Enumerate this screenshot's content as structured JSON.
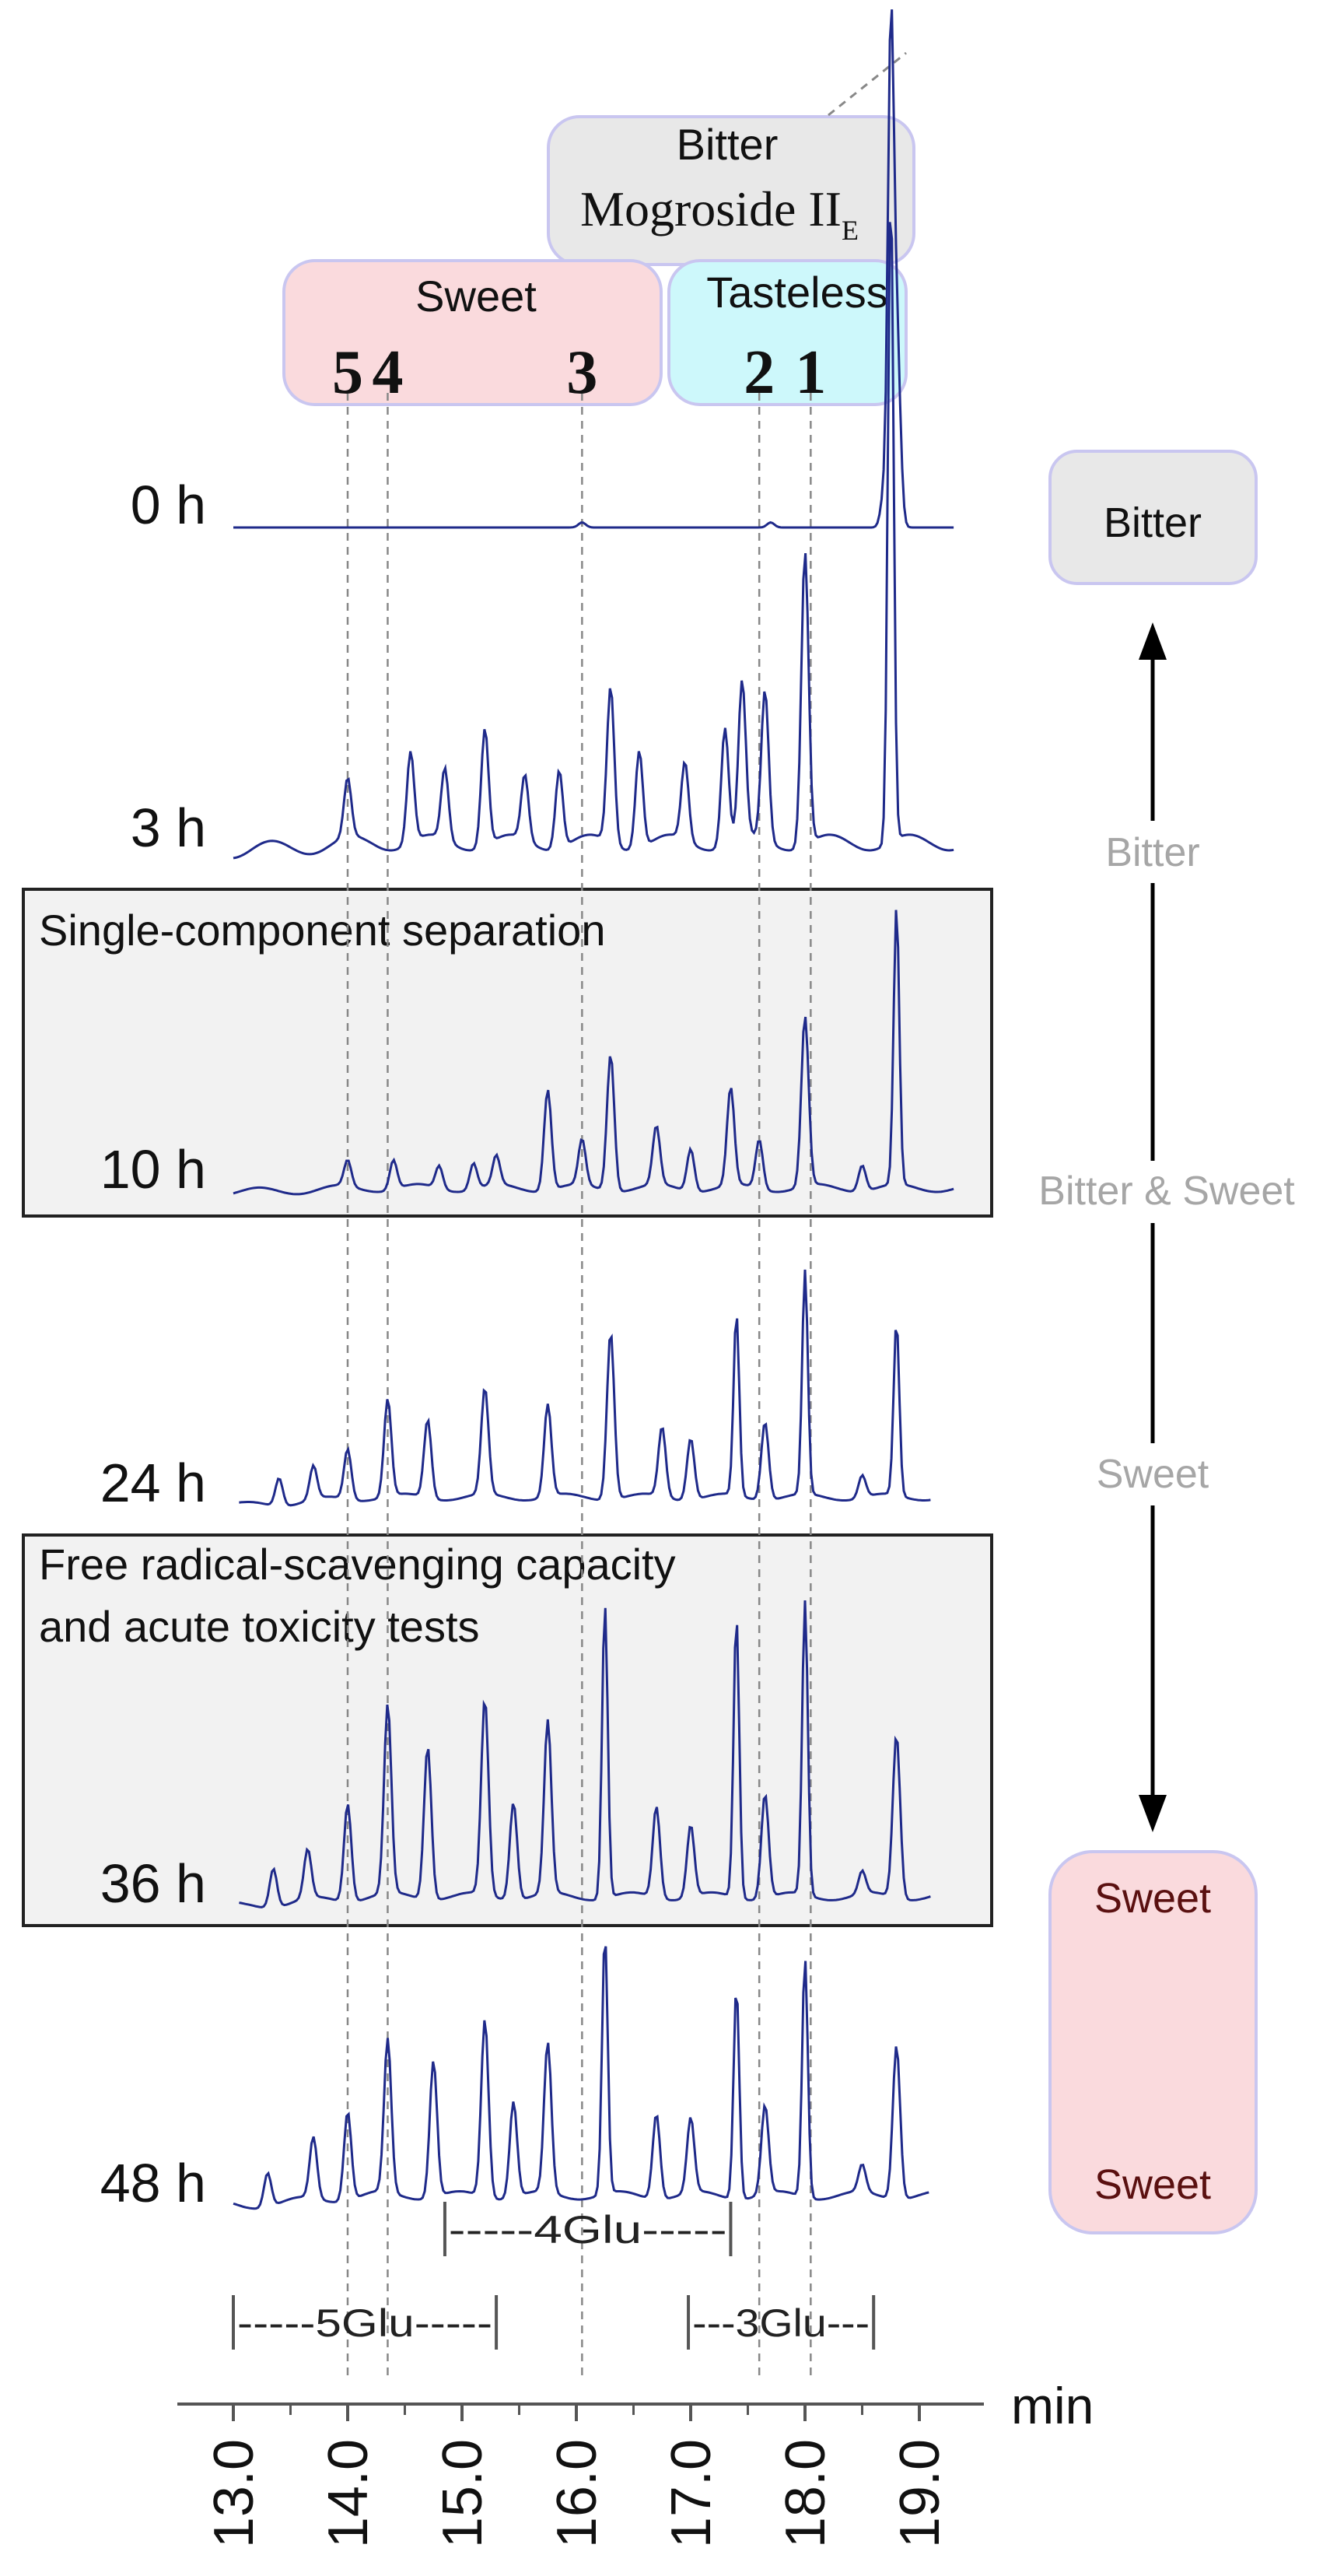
{
  "chart_data": {
    "type": "line",
    "xlabel": "min",
    "xlim": [
      13.0,
      19.3
    ],
    "ticks": [
      "13.0",
      "14.0",
      "15.0",
      "16.0",
      "17.0",
      "18.0",
      "19.0"
    ],
    "tick_values": [
      13.0,
      14.0,
      15.0,
      16.0,
      17.0,
      18.0,
      19.0
    ],
    "series": [
      {
        "name": "0 h",
        "peaks": [
          {
            "x": 18.7,
            "h": 0.08
          },
          {
            "x": 18.75,
            "h": 0.9
          },
          {
            "x": 18.8,
            "h": 0.4
          },
          {
            "x": 16.05,
            "h": 0.01
          },
          {
            "x": 17.7,
            "h": 0.01
          }
        ]
      },
      {
        "name": "3 h",
        "peaks": [
          {
            "x": 14.0,
            "h": 0.09
          },
          {
            "x": 14.55,
            "h": 0.14
          },
          {
            "x": 14.85,
            "h": 0.11
          },
          {
            "x": 15.2,
            "h": 0.18
          },
          {
            "x": 15.55,
            "h": 0.1
          },
          {
            "x": 15.85,
            "h": 0.12
          },
          {
            "x": 16.3,
            "h": 0.24
          },
          {
            "x": 16.55,
            "h": 0.15
          },
          {
            "x": 16.95,
            "h": 0.12
          },
          {
            "x": 17.3,
            "h": 0.18
          },
          {
            "x": 17.45,
            "h": 0.24
          },
          {
            "x": 17.65,
            "h": 0.23
          },
          {
            "x": 18.0,
            "h": 0.45
          },
          {
            "x": 18.75,
            "h": 1.0
          }
        ]
      },
      {
        "name": "10 h",
        "peaks": [
          {
            "x": 14.0,
            "h": 0.08
          },
          {
            "x": 14.4,
            "h": 0.09
          },
          {
            "x": 14.8,
            "h": 0.07
          },
          {
            "x": 15.1,
            "h": 0.08
          },
          {
            "x": 15.3,
            "h": 0.09
          },
          {
            "x": 15.75,
            "h": 0.31
          },
          {
            "x": 16.05,
            "h": 0.14
          },
          {
            "x": 16.3,
            "h": 0.42
          },
          {
            "x": 16.7,
            "h": 0.18
          },
          {
            "x": 17.0,
            "h": 0.13
          },
          {
            "x": 17.35,
            "h": 0.3
          },
          {
            "x": 17.6,
            "h": 0.15
          },
          {
            "x": 18.0,
            "h": 0.52
          },
          {
            "x": 18.5,
            "h": 0.08
          },
          {
            "x": 18.8,
            "h": 0.85
          }
        ]
      },
      {
        "name": "24 h",
        "peaks": [
          {
            "x": 13.4,
            "h": 0.1
          },
          {
            "x": 13.7,
            "h": 0.12
          },
          {
            "x": 14.0,
            "h": 0.18
          },
          {
            "x": 14.35,
            "h": 0.35
          },
          {
            "x": 14.7,
            "h": 0.28
          },
          {
            "x": 15.2,
            "h": 0.38
          },
          {
            "x": 15.75,
            "h": 0.33
          },
          {
            "x": 16.3,
            "h": 0.6
          },
          {
            "x": 16.75,
            "h": 0.25
          },
          {
            "x": 17.0,
            "h": 0.22
          },
          {
            "x": 17.4,
            "h": 0.65
          },
          {
            "x": 17.65,
            "h": 0.28
          },
          {
            "x": 18.0,
            "h": 0.8
          },
          {
            "x": 18.5,
            "h": 0.08
          },
          {
            "x": 18.8,
            "h": 0.62
          }
        ]
      },
      {
        "name": "36 h",
        "peaks": [
          {
            "x": 13.35,
            "h": 0.12
          },
          {
            "x": 13.65,
            "h": 0.15
          },
          {
            "x": 14.0,
            "h": 0.3
          },
          {
            "x": 14.35,
            "h": 0.58
          },
          {
            "x": 14.7,
            "h": 0.47
          },
          {
            "x": 15.2,
            "h": 0.6
          },
          {
            "x": 15.45,
            "h": 0.3
          },
          {
            "x": 15.75,
            "h": 0.53
          },
          {
            "x": 16.25,
            "h": 0.9
          },
          {
            "x": 16.7,
            "h": 0.28
          },
          {
            "x": 17.0,
            "h": 0.22
          },
          {
            "x": 17.4,
            "h": 0.86
          },
          {
            "x": 17.65,
            "h": 0.32
          },
          {
            "x": 18.0,
            "h": 0.9
          },
          {
            "x": 18.5,
            "h": 0.07
          },
          {
            "x": 18.8,
            "h": 0.5
          }
        ]
      },
      {
        "name": "48 h",
        "peaks": [
          {
            "x": 13.3,
            "h": 0.1
          },
          {
            "x": 13.7,
            "h": 0.18
          },
          {
            "x": 14.0,
            "h": 0.26
          },
          {
            "x": 14.35,
            "h": 0.45
          },
          {
            "x": 14.75,
            "h": 0.4
          },
          {
            "x": 15.2,
            "h": 0.52
          },
          {
            "x": 15.45,
            "h": 0.28
          },
          {
            "x": 15.75,
            "h": 0.44
          },
          {
            "x": 16.25,
            "h": 0.76
          },
          {
            "x": 16.7,
            "h": 0.25
          },
          {
            "x": 17.0,
            "h": 0.22
          },
          {
            "x": 17.4,
            "h": 0.62
          },
          {
            "x": 17.65,
            "h": 0.26
          },
          {
            "x": 18.0,
            "h": 0.7
          },
          {
            "x": 18.5,
            "h": 0.08
          },
          {
            "x": 18.8,
            "h": 0.45
          }
        ]
      }
    ],
    "peak_markers": [
      {
        "label": "5",
        "x": 14.0
      },
      {
        "label": "4",
        "x": 14.35
      },
      {
        "label": "3",
        "x": 16.05
      },
      {
        "label": "2",
        "x": 17.6
      },
      {
        "label": "1",
        "x": 18.05
      }
    ],
    "glu_ranges": [
      {
        "label": "-----4Glu-----",
        "x0": 14.85,
        "x1": 17.35
      },
      {
        "label": "-----5Glu-----",
        "x0": 13.0,
        "x1": 15.3
      },
      {
        "label": "---3Glu---",
        "x0": 16.98,
        "x1": 18.6
      }
    ],
    "taste_boxes": {
      "bitter_title": "Bitter",
      "mogroside": "Mogroside II",
      "mogroside_sub": "E",
      "sweet": "Sweet",
      "tasteless": "Tasteless"
    },
    "panels": [
      {
        "label": "Single-component separation"
      },
      {
        "line1": "Free radical-scavenging capacity",
        "line2": "and acute toxicity tests"
      }
    ],
    "taste_scale": {
      "top_box": "Bitter",
      "labels": [
        "Bitter",
        "Bitter & Sweet",
        "Sweet"
      ],
      "bottom_box": [
        "Sweet",
        "Sweet"
      ]
    },
    "colors": {
      "trace": "#1f2a8a",
      "sweet_box": "#fadadd",
      "tasteless_box": "#cdf8fb",
      "bitter_box": "#e8e8e8",
      "panel_bg": "#f2f2f2",
      "box_border": "#c9c6f0",
      "scale_text": "#a6a6a6"
    }
  }
}
